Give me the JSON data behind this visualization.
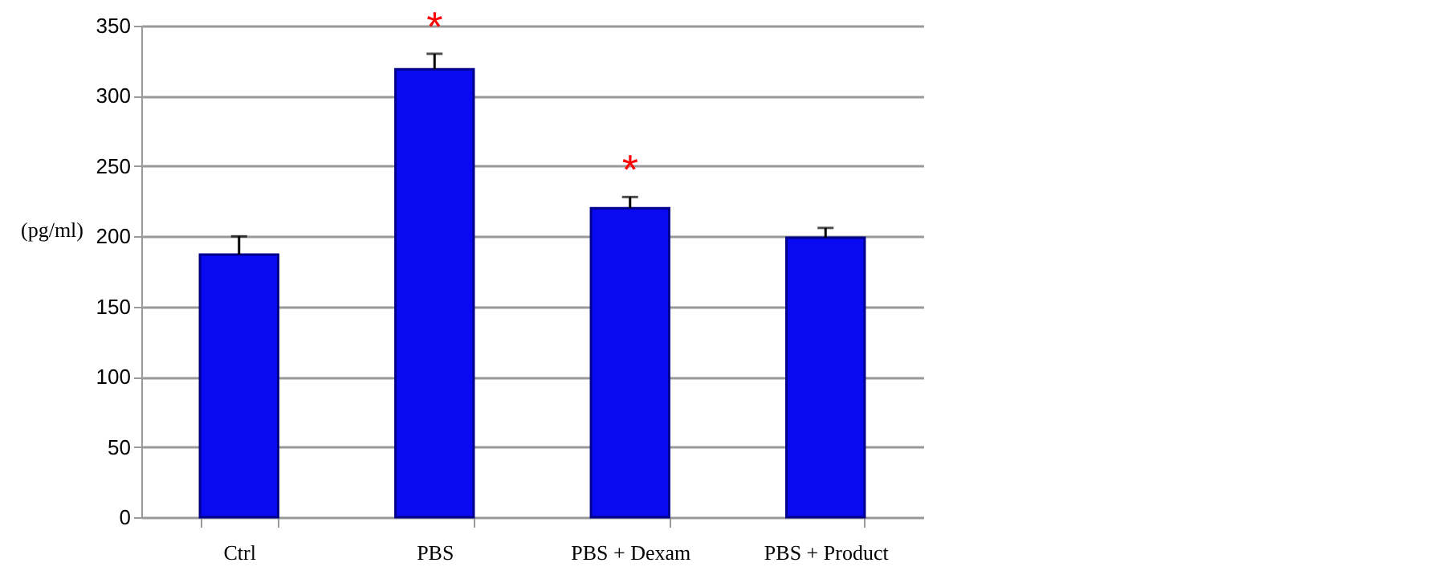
{
  "chart_data": {
    "type": "bar",
    "ylabel": "(pg/ml)",
    "categories": [
      "Ctrl",
      "PBS",
      "PBS + Dexam",
      "PBS + Product"
    ],
    "values": [
      187,
      319,
      220,
      199
    ],
    "errors": [
      [
        187,
        200
      ],
      [
        319,
        330
      ],
      [
        220,
        228
      ],
      [
        199,
        206
      ]
    ],
    "color": "#0a0af2",
    "ylim": [
      0,
      350
    ],
    "yticks": [
      0,
      50,
      100,
      150,
      200,
      250,
      300,
      350
    ],
    "grid": "y",
    "annotations": [
      {
        "text": "*",
        "x": "PBS",
        "y": 330
      },
      {
        "text": "*",
        "x": "PBS + Dexam",
        "y": 228
      }
    ]
  }
}
